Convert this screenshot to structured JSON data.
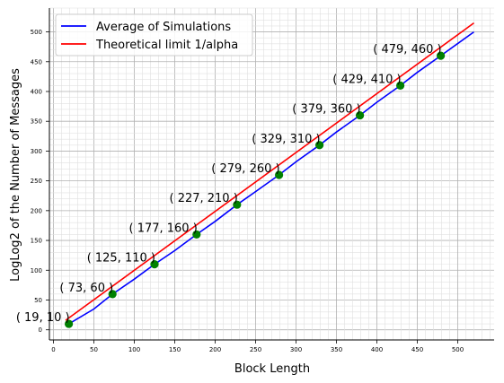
{
  "chart_data": {
    "type": "line",
    "xlabel": "Block Length",
    "ylabel": "LogLog2 of the Number of Messages",
    "xlim": [
      -5,
      545
    ],
    "ylim": [
      -17,
      540
    ],
    "x_ticks": [
      0,
      50,
      100,
      150,
      200,
      250,
      300,
      350,
      400,
      450,
      500
    ],
    "y_ticks": [
      0,
      50,
      100,
      150,
      200,
      250,
      300,
      350,
      400,
      450,
      500
    ],
    "grid": "major and minor",
    "legend_position": "top-left",
    "series": [
      {
        "name": "Average of Simulations",
        "color": "#0000ff",
        "x": [
          19,
          50,
          73,
          100,
          125,
          150,
          177,
          200,
          227,
          250,
          279,
          300,
          329,
          350,
          379,
          400,
          429,
          450,
          479,
          520
        ],
        "y": [
          10,
          35,
          60,
          85,
          110,
          133,
          160,
          182,
          210,
          232,
          260,
          282,
          310,
          332,
          360,
          382,
          410,
          432,
          460,
          500
        ]
      },
      {
        "name": "Theoretical limit 1/alpha",
        "color": "#ff0000",
        "x": [
          15,
          520
        ],
        "y": [
          16,
          515
        ]
      }
    ],
    "points": {
      "color": "#008000",
      "x": [
        19,
        73,
        125,
        177,
        227,
        279,
        329,
        379,
        429,
        479
      ],
      "y": [
        10,
        60,
        110,
        160,
        210,
        260,
        310,
        360,
        410,
        460
      ]
    },
    "annotations": [
      "( 19, 10 )",
      "( 73, 60 )",
      "( 125, 110 )",
      "( 177, 160 )",
      "( 227, 210 )",
      "( 279, 260 )",
      "( 329, 310 )",
      "( 379, 360 )",
      "( 429, 410 )",
      "( 479, 460 )"
    ]
  }
}
